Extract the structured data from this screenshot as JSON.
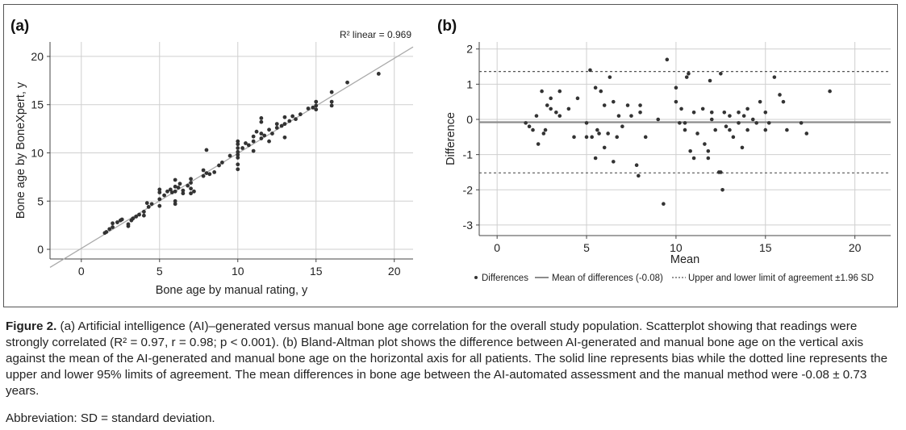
{
  "figure": {
    "label": "Figure 2.",
    "caption_text": " (a) Artificial intelligence (AI)–generated versus manual bone age correlation for the overall study population. Scatterplot showing that readings were strongly correlated (R² = 0.97, r = 0.98; p < 0.001). (b) Bland-Altman plot shows the difference between AI-generated and manual bone age on the vertical axis against the mean of the AI-generated and manual bone age on the horizontal axis for all patients. The solid line represents bias while the dotted line represents the upper and lower 95% limits of agreement. The mean differences in bone age between the AI-automated assessment and the manual method were -0.08 ± 0.73 years.",
    "abbreviation": "Abbreviation: SD =  standard deviation."
  },
  "colors": {
    "points": "#333333",
    "grid": "#cfcfcf",
    "regression": "#aaaaaa",
    "mean_line": "#8c8c8c",
    "loa_line": "#555555"
  },
  "chart_data": [
    {
      "type": "scatter",
      "panel": "(a)",
      "title": "",
      "xlabel": "Bone age by manual rating, y",
      "ylabel": "Bone age by BoneXpert, y",
      "xlim": [
        -2,
        21.2
      ],
      "ylim": [
        -1,
        21.5
      ],
      "xticks": [
        0,
        5,
        10,
        15,
        20
      ],
      "yticks": [
        0,
        5,
        10,
        15,
        20
      ],
      "grid": true,
      "annotation": "R² linear = 0.969",
      "regression_line": {
        "slope": 0.985,
        "intercept": 0.1
      },
      "points": [
        [
          1.5,
          1.7
        ],
        [
          1.6,
          1.8
        ],
        [
          1.8,
          2.1
        ],
        [
          2.0,
          2.3
        ],
        [
          2.0,
          2.7
        ],
        [
          2.3,
          2.8
        ],
        [
          2.5,
          3.0
        ],
        [
          2.6,
          3.1
        ],
        [
          3.0,
          2.4
        ],
        [
          3.0,
          2.6
        ],
        [
          3.2,
          3.0
        ],
        [
          3.3,
          3.2
        ],
        [
          3.5,
          3.4
        ],
        [
          3.7,
          3.6
        ],
        [
          4.0,
          3.5
        ],
        [
          4.0,
          3.9
        ],
        [
          4.2,
          4.8
        ],
        [
          4.3,
          4.4
        ],
        [
          4.5,
          4.7
        ],
        [
          5.0,
          4.5
        ],
        [
          5.0,
          5.2
        ],
        [
          5.0,
          5.9
        ],
        [
          5.0,
          6.2
        ],
        [
          5.3,
          5.6
        ],
        [
          5.5,
          6.0
        ],
        [
          5.7,
          6.2
        ],
        [
          5.8,
          5.9
        ],
        [
          6.0,
          6.5
        ],
        [
          6.0,
          5.0
        ],
        [
          6.0,
          4.7
        ],
        [
          6.0,
          6.0
        ],
        [
          6.0,
          7.2
        ],
        [
          6.2,
          6.4
        ],
        [
          6.3,
          6.8
        ],
        [
          6.5,
          5.8
        ],
        [
          6.5,
          6.1
        ],
        [
          6.8,
          6.6
        ],
        [
          7.0,
          6.9
        ],
        [
          7.0,
          7.3
        ],
        [
          7.0,
          5.8
        ],
        [
          7.0,
          6.3
        ],
        [
          7.2,
          6.0
        ],
        [
          7.8,
          7.6
        ],
        [
          7.8,
          8.2
        ],
        [
          8.0,
          7.9
        ],
        [
          8.0,
          10.3
        ],
        [
          8.2,
          7.8
        ],
        [
          8.5,
          8.0
        ],
        [
          8.8,
          8.7
        ],
        [
          9.0,
          9.0
        ],
        [
          9.5,
          9.7
        ],
        [
          10.0,
          8.3
        ],
        [
          10.0,
          8.8
        ],
        [
          10.0,
          9.5
        ],
        [
          10.0,
          9.8
        ],
        [
          10.0,
          10.1
        ],
        [
          10.0,
          10.5
        ],
        [
          10.0,
          10.9
        ],
        [
          10.0,
          11.2
        ],
        [
          10.3,
          10.5
        ],
        [
          10.5,
          11.0
        ],
        [
          10.7,
          10.8
        ],
        [
          11.0,
          10.2
        ],
        [
          11.0,
          11.2
        ],
        [
          11.0,
          11.7
        ],
        [
          11.2,
          12.2
        ],
        [
          11.5,
          11.5
        ],
        [
          11.5,
          12.0
        ],
        [
          11.5,
          13.2
        ],
        [
          11.5,
          13.6
        ],
        [
          11.7,
          11.8
        ],
        [
          12.0,
          11.2
        ],
        [
          12.0,
          12.4
        ],
        [
          12.2,
          12.0
        ],
        [
          12.5,
          13.0
        ],
        [
          12.5,
          12.6
        ],
        [
          12.8,
          12.8
        ],
        [
          13.0,
          11.6
        ],
        [
          13.0,
          13.0
        ],
        [
          13.0,
          13.7
        ],
        [
          13.3,
          13.3
        ],
        [
          13.5,
          13.8
        ],
        [
          13.7,
          13.5
        ],
        [
          14.0,
          14.0
        ],
        [
          14.5,
          14.6
        ],
        [
          14.8,
          14.7
        ],
        [
          15.0,
          14.5
        ],
        [
          15.0,
          14.9
        ],
        [
          15.0,
          15.3
        ],
        [
          16.0,
          14.9
        ],
        [
          16.0,
          15.3
        ],
        [
          16.0,
          16.3
        ],
        [
          17.0,
          17.3
        ],
        [
          19.0,
          18.2
        ]
      ]
    },
    {
      "type": "scatter",
      "panel": "(b)",
      "title": "",
      "xlabel": "Mean",
      "ylabel": "Difference",
      "xlim": [
        -1,
        22
      ],
      "ylim": [
        -3.3,
        2.2
      ],
      "xticks": [
        0,
        5,
        10,
        15,
        20
      ],
      "yticks": [
        -3,
        -2,
        -1,
        0,
        1,
        2
      ],
      "grid": true,
      "mean_difference": -0.08,
      "upper_loa": 1.36,
      "lower_loa": -1.52,
      "legend": {
        "placement": "bottom",
        "entries": [
          "Differences",
          "Mean of differences (-0.08)",
          "Upper and lower limit of agreement ±1.96 SD"
        ]
      },
      "points": [
        [
          1.6,
          -0.1
        ],
        [
          1.8,
          -0.2
        ],
        [
          2.0,
          -0.3
        ],
        [
          2.2,
          0.1
        ],
        [
          2.3,
          -0.7
        ],
        [
          2.5,
          0.8
        ],
        [
          2.6,
          -0.4
        ],
        [
          2.7,
          -0.3
        ],
        [
          2.8,
          0.4
        ],
        [
          3.0,
          0.3
        ],
        [
          3.0,
          0.6
        ],
        [
          3.3,
          0.2
        ],
        [
          3.5,
          0.8
        ],
        [
          3.5,
          0.1
        ],
        [
          4.0,
          0.3
        ],
        [
          4.3,
          -0.5
        ],
        [
          4.5,
          0.6
        ],
        [
          5.0,
          -0.1
        ],
        [
          5.0,
          -0.5
        ],
        [
          5.2,
          1.4
        ],
        [
          5.3,
          -0.5
        ],
        [
          5.5,
          -1.1
        ],
        [
          5.5,
          0.9
        ],
        [
          5.6,
          -0.3
        ],
        [
          5.7,
          -0.4
        ],
        [
          5.8,
          0.8
        ],
        [
          6.0,
          -0.8
        ],
        [
          6.0,
          0.4
        ],
        [
          6.2,
          -0.4
        ],
        [
          6.3,
          1.2
        ],
        [
          6.5,
          -1.2
        ],
        [
          6.5,
          0.5
        ],
        [
          6.7,
          -0.5
        ],
        [
          6.8,
          0.1
        ],
        [
          7.0,
          -0.2
        ],
        [
          7.3,
          0.4
        ],
        [
          7.5,
          0.1
        ],
        [
          7.8,
          -1.3
        ],
        [
          7.9,
          -1.6
        ],
        [
          8.0,
          0.4
        ],
        [
          8.0,
          0.2
        ],
        [
          8.3,
          -0.5
        ],
        [
          9.0,
          0.0
        ],
        [
          9.3,
          -2.4
        ],
        [
          9.5,
          1.7
        ],
        [
          10.0,
          0.9
        ],
        [
          10.0,
          0.5
        ],
        [
          10.2,
          -0.1
        ],
        [
          10.3,
          0.3
        ],
        [
          10.5,
          -0.3
        ],
        [
          10.5,
          -0.1
        ],
        [
          10.6,
          1.2
        ],
        [
          10.7,
          1.3
        ],
        [
          10.8,
          -0.9
        ],
        [
          11.0,
          -1.1
        ],
        [
          11.0,
          0.2
        ],
        [
          11.2,
          -0.4
        ],
        [
          11.5,
          0.3
        ],
        [
          11.6,
          -0.7
        ],
        [
          11.8,
          -0.9
        ],
        [
          11.8,
          -1.1
        ],
        [
          11.9,
          1.1
        ],
        [
          12.0,
          0.0
        ],
        [
          12.0,
          0.2
        ],
        [
          12.2,
          -0.3
        ],
        [
          12.4,
          -1.5
        ],
        [
          12.5,
          -1.5
        ],
        [
          12.5,
          1.3
        ],
        [
          12.6,
          -2.0
        ],
        [
          12.7,
          0.2
        ],
        [
          12.8,
          -0.2
        ],
        [
          13.0,
          -0.3
        ],
        [
          13.0,
          0.1
        ],
        [
          13.2,
          -0.5
        ],
        [
          13.5,
          0.2
        ],
        [
          13.5,
          -0.1
        ],
        [
          13.7,
          -0.8
        ],
        [
          13.8,
          0.1
        ],
        [
          14.0,
          0.3
        ],
        [
          14.0,
          -0.3
        ],
        [
          14.3,
          0.0
        ],
        [
          14.5,
          -0.1
        ],
        [
          14.7,
          0.5
        ],
        [
          15.0,
          0.2
        ],
        [
          15.0,
          -0.3
        ],
        [
          15.2,
          -0.1
        ],
        [
          15.5,
          1.2
        ],
        [
          15.8,
          0.7
        ],
        [
          16.0,
          0.5
        ],
        [
          16.2,
          -0.3
        ],
        [
          17.0,
          -0.1
        ],
        [
          17.3,
          -0.4
        ],
        [
          18.6,
          0.8
        ]
      ]
    }
  ]
}
